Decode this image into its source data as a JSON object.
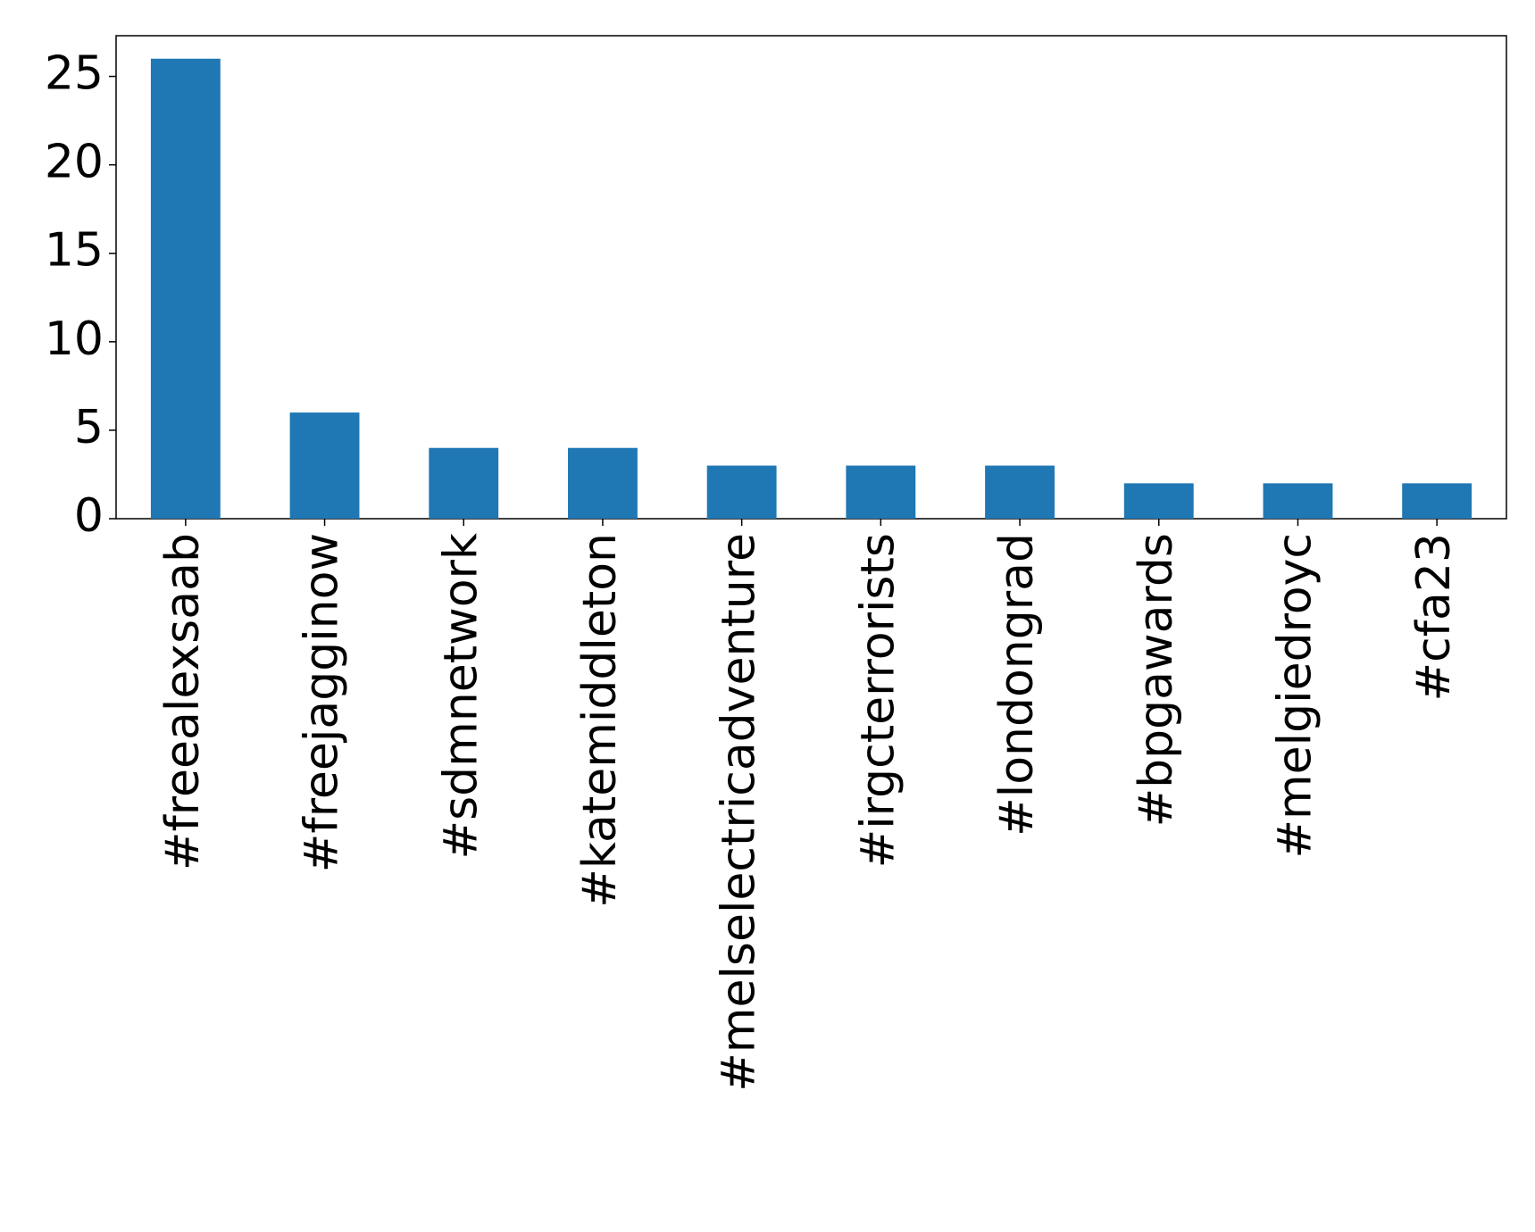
{
  "chart_data": {
    "type": "bar",
    "categories": [
      "#freealexsaab",
      "#freejagginow",
      "#sdmnetwork",
      "#katemiddleton",
      "#melselectricadventure",
      "#irgcterrorists",
      "#londongrad",
      "#bpgawards",
      "#melgiedroyc",
      "#cfa23"
    ],
    "values": [
      26,
      6,
      4,
      4,
      3,
      3,
      3,
      2,
      2,
      2
    ],
    "color": "#1f77b4",
    "ylim": [
      0,
      27.3
    ],
    "yticks": [
      0,
      5,
      10,
      15,
      20,
      25
    ],
    "grid": false
  }
}
